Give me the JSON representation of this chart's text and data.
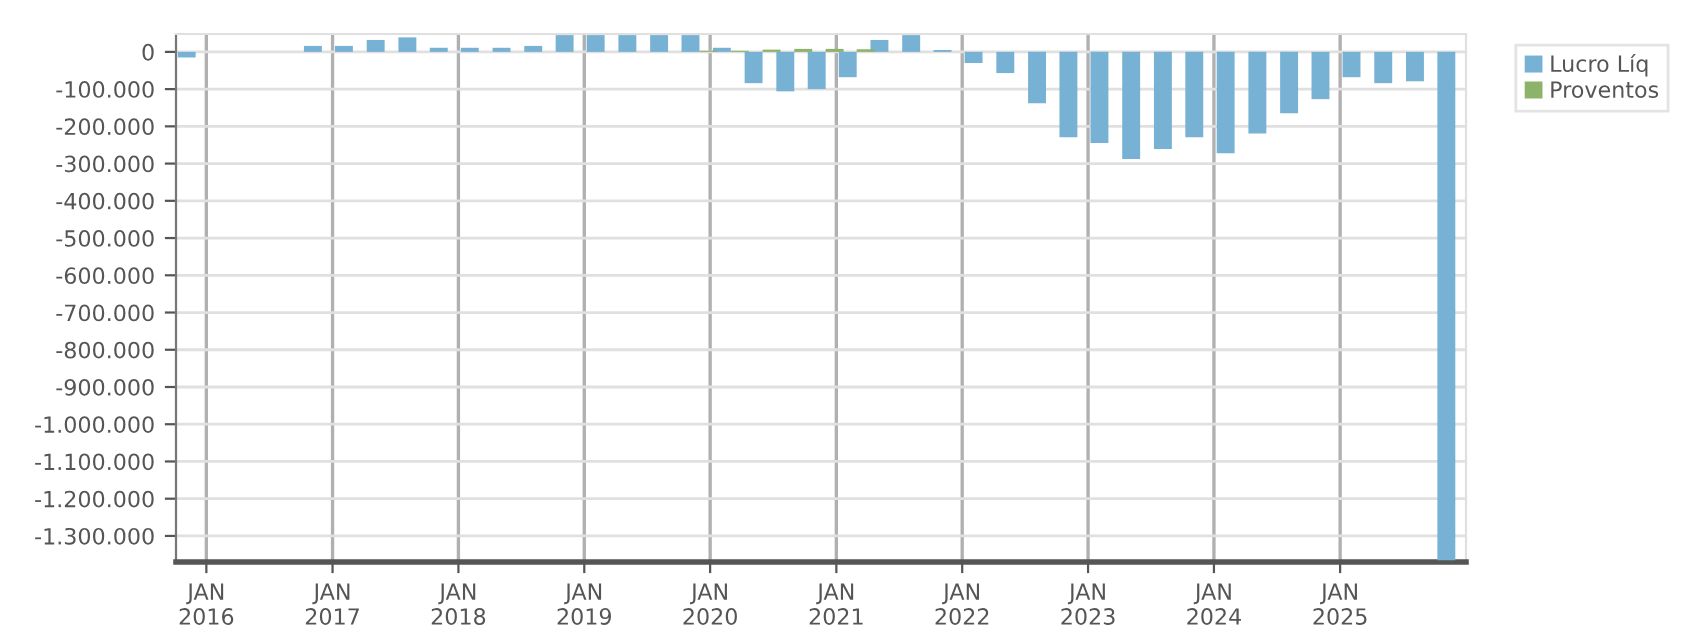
{
  "chart_data": {
    "type": "bar",
    "x": [
      "2015-12-01",
      "2016-03-01",
      "2016-06-01",
      "2016-09-01",
      "2016-12-01",
      "2017-03-01",
      "2017-06-01",
      "2017-09-01",
      "2017-12-01",
      "2018-03-01",
      "2018-06-01",
      "2018-09-01",
      "2018-12-01",
      "2019-03-01",
      "2019-06-01",
      "2019-09-01",
      "2019-12-01",
      "2020-03-01",
      "2020-06-01",
      "2020-09-01",
      "2020-12-01",
      "2021-03-01",
      "2021-06-01",
      "2021-09-01",
      "2021-12-01",
      "2022-03-01",
      "2022-06-01",
      "2022-09-01",
      "2022-12-01",
      "2023-03-01",
      "2023-06-01",
      "2023-09-01",
      "2023-12-01",
      "2024-03-01",
      "2024-06-01",
      "2024-09-01",
      "2024-12-01",
      "2025-03-01",
      "2025-06-01",
      "2025-09-01",
      "2025-12-01"
    ],
    "series": [
      {
        "name": "Lucro Líq",
        "color": "#77b1d4",
        "values": [
          -15000,
          null,
          null,
          null,
          16000,
          16000,
          32000,
          39000,
          11000,
          11000,
          11000,
          16000,
          45000,
          45000,
          45000,
          45000,
          45000,
          11000,
          -84000,
          -106000,
          -100000,
          -68000,
          32000,
          45000,
          5000,
          -30000,
          -57000,
          -138000,
          -229000,
          -245000,
          -288000,
          -261000,
          -229000,
          -272000,
          -219000,
          -165000,
          -127000,
          -68000,
          -84000,
          -79000,
          -1365000
        ]
      },
      {
        "name": "Proventos",
        "color": "#8db26a",
        "values": [
          0,
          0,
          0,
          0,
          0,
          0,
          0,
          0,
          0,
          0,
          0,
          0,
          0,
          0,
          0,
          0,
          3000,
          3000,
          6000,
          8000,
          8000,
          7000,
          0,
          0,
          0,
          0,
          0,
          0,
          0,
          0,
          0,
          0,
          0,
          0,
          0,
          0,
          0,
          0,
          0,
          0,
          0
        ]
      }
    ],
    "xlim": [
      "2015-10-05",
      "2026-01-01"
    ],
    "xticks": [
      {
        "value": "2016-01-01",
        "label": "JAN\n2016"
      },
      {
        "value": "2017-01-01",
        "label": "JAN\n2017"
      },
      {
        "value": "2018-01-01",
        "label": "JAN\n2018"
      },
      {
        "value": "2019-01-01",
        "label": "JAN\n2019"
      },
      {
        "value": "2020-01-01",
        "label": "JAN\n2020"
      },
      {
        "value": "2021-01-01",
        "label": "JAN\n2021"
      },
      {
        "value": "2022-01-01",
        "label": "JAN\n2022"
      },
      {
        "value": "2023-01-01",
        "label": "JAN\n2023"
      },
      {
        "value": "2024-01-01",
        "label": "JAN\n2024"
      },
      {
        "value": "2025-01-01",
        "label": "JAN\n2025"
      }
    ],
    "ylim": [
      -1370000,
      48000
    ],
    "yticks": [
      0,
      {
        "value": -100000,
        "label": "-100.000"
      },
      {
        "value": -200000,
        "label": "-200.000"
      },
      {
        "value": -300000,
        "label": "-300.000"
      },
      {
        "value": -400000,
        "label": "-400.000"
      },
      {
        "value": -500000,
        "label": "-500.000"
      },
      {
        "value": -600000,
        "label": "-600.000"
      },
      {
        "value": -700000,
        "label": "-700.000"
      },
      {
        "value": -800000,
        "label": "-800.000"
      },
      {
        "value": -900000,
        "label": "-900.000"
      },
      {
        "value": -1000000,
        "label": "-1.000.000"
      },
      {
        "value": -1100000,
        "label": "-1.100.000"
      },
      {
        "value": -1200000,
        "label": "-1.200.000"
      },
      {
        "value": -1300000,
        "label": "-1.300.000"
      }
    ],
    "grid": true,
    "legend": "top right"
  }
}
